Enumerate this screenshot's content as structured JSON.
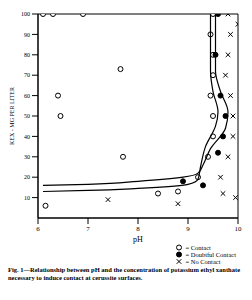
{
  "chart_data": {
    "type": "scatter",
    "title": "Fig. 1—Relationship between pH and the concentration of potassium ethyl xanthate necessary to induce contact at cerussite surfaces.",
    "x_label": "pH",
    "y_label": "KEX - MG PER LITER",
    "xlim": [
      6,
      10
    ],
    "xticks": [
      6,
      7,
      8,
      9,
      10
    ],
    "ylim": [
      0,
      100
    ],
    "yticks": [
      10,
      20,
      30,
      40,
      50,
      60,
      70,
      80,
      90,
      100
    ],
    "grid": false,
    "legend": "lower right",
    "series": [
      {
        "name": "= Contact",
        "type": "scatter",
        "marker": "o",
        "color": "#000000",
        "x": [
          6.1,
          6.3,
          6.9,
          6.4,
          6.45,
          7.65,
          7.7,
          6.15,
          8.4,
          8.8,
          9.5,
          9.45,
          9.5,
          9.5,
          9.45,
          9.5,
          9.5,
          9.4,
          9.2
        ],
        "values": [
          100,
          100,
          100,
          60,
          50,
          73,
          30,
          6,
          12,
          13,
          100,
          90,
          80,
          70,
          60,
          50,
          40,
          30,
          20
        ]
      },
      {
        "name": "= Doubtful Contact",
        "type": "scatter",
        "marker": "filled",
        "color": "#000000",
        "x": [
          9.6,
          9.55,
          9.65,
          9.75,
          9.7,
          9.6,
          9.3,
          8.9
        ],
        "values": [
          100,
          80,
          60,
          50,
          40,
          32,
          16,
          18
        ]
      },
      {
        "name": "= No Contact",
        "type": "scatter",
        "marker": "x",
        "color": "#000000",
        "x": [
          7.4,
          8.8,
          9.8,
          9.85,
          9.8,
          9.75,
          9.85,
          9.9,
          9.9,
          9.8,
          9.65,
          9.7,
          9.95,
          10
        ],
        "values": [
          9,
          7,
          100,
          90,
          80,
          70,
          60,
          50,
          40,
          30,
          20,
          12,
          10,
          95
        ]
      },
      {
        "type": "line",
        "marker": "none",
        "color": "#000000",
        "x": [
          6.1,
          7,
          8,
          9,
          9.2,
          9.25,
          9.35,
          9.55,
          9.6,
          9.5,
          9.45,
          9.45,
          9.45
        ],
        "values": [
          13,
          13.5,
          14.5,
          16.5,
          19,
          25,
          35,
          45,
          52,
          62,
          72,
          85,
          100
        ]
      },
      {
        "type": "line",
        "marker": "none",
        "color": "#000000",
        "x": [
          6.1,
          7,
          8,
          8.9,
          9.2,
          9.3,
          9.45,
          9.75,
          9.8,
          9.65,
          9.55,
          9.55,
          9.55
        ],
        "values": [
          16,
          16.5,
          18,
          20,
          22,
          26,
          34,
          44,
          52,
          62,
          72,
          85,
          100
        ]
      }
    ]
  }
}
